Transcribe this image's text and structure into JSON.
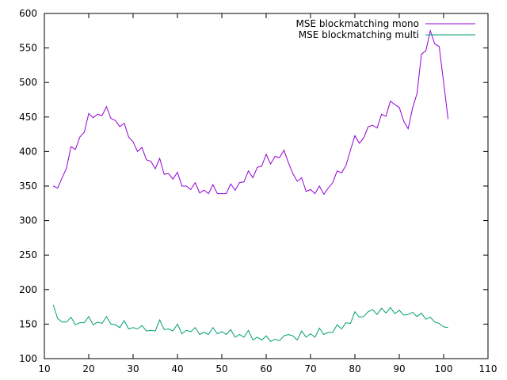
{
  "chart_data": {
    "type": "line",
    "title": "",
    "xlabel": "",
    "ylabel": "",
    "xlim": [
      10,
      110
    ],
    "ylim": [
      100,
      600
    ],
    "x_ticks": [
      10,
      20,
      30,
      40,
      50,
      60,
      70,
      80,
      90,
      100,
      110
    ],
    "y_ticks": [
      100,
      150,
      200,
      250,
      300,
      350,
      400,
      450,
      500,
      550,
      600
    ],
    "grid": false,
    "legend": "top-right",
    "x": [
      12,
      13,
      14,
      15,
      16,
      17,
      18,
      19,
      20,
      21,
      22,
      23,
      24,
      25,
      26,
      27,
      28,
      29,
      30,
      31,
      32,
      33,
      34,
      35,
      36,
      37,
      38,
      39,
      40,
      41,
      42,
      43,
      44,
      45,
      46,
      47,
      48,
      49,
      50,
      51,
      52,
      53,
      54,
      55,
      56,
      57,
      58,
      59,
      60,
      61,
      62,
      63,
      64,
      65,
      66,
      67,
      68,
      69,
      70,
      71,
      72,
      73,
      74,
      75,
      76,
      77,
      78,
      79,
      80,
      81,
      82,
      83,
      84,
      85,
      86,
      87,
      88,
      89,
      90,
      91,
      92,
      93,
      94,
      95,
      96,
      97,
      98,
      99,
      100,
      101
    ],
    "series": [
      {
        "name": "MSE blockmatching mono",
        "color": "#9400d3",
        "values": [
          350,
          347,
          362,
          376,
          407,
          403,
          421,
          428,
          455,
          449,
          454,
          452,
          465,
          448,
          445,
          436,
          441,
          421,
          414,
          400,
          406,
          388,
          386,
          375,
          390,
          367,
          368,
          360,
          370,
          350,
          350,
          345,
          355,
          340,
          344,
          339,
          352,
          339,
          339,
          339,
          353,
          344,
          355,
          356,
          372,
          362,
          377,
          379,
          396,
          382,
          393,
          391,
          402,
          384,
          368,
          357,
          362,
          342,
          345,
          339,
          350,
          338,
          347,
          355,
          372,
          369,
          380,
          402,
          423,
          412,
          420,
          436,
          438,
          434,
          454,
          451,
          473,
          468,
          464,
          444,
          433,
          463,
          484,
          541,
          546,
          575,
          556,
          552,
          500,
          447
        ]
      },
      {
        "name": "MSE blockmatching multi",
        "color": "#009e73",
        "values": [
          178,
          158,
          153,
          153,
          160,
          149,
          152,
          152,
          161,
          149,
          153,
          151,
          161,
          150,
          149,
          145,
          155,
          143,
          145,
          143,
          148,
          140,
          141,
          140,
          156,
          142,
          143,
          140,
          150,
          136,
          141,
          139,
          145,
          135,
          138,
          135,
          145,
          136,
          139,
          135,
          142,
          131,
          135,
          131,
          141,
          127,
          131,
          127,
          133,
          125,
          128,
          126,
          133,
          135,
          133,
          127,
          140,
          131,
          136,
          131,
          144,
          135,
          138,
          138,
          149,
          143,
          152,
          151,
          168,
          160,
          161,
          168,
          171,
          164,
          173,
          166,
          174,
          165,
          170,
          163,
          164,
          167,
          161,
          166,
          157,
          160,
          153,
          151,
          146,
          145
        ]
      }
    ]
  }
}
